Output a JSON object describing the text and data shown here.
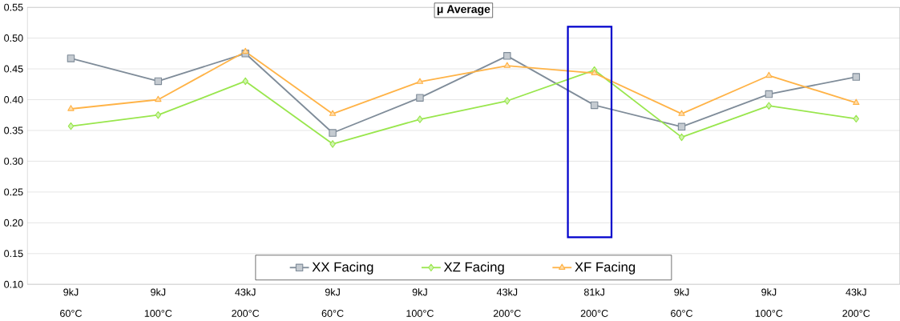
{
  "chart_data": {
    "type": "line",
    "title": "μ Average",
    "categories": [
      "9kJ 60°C",
      "9kJ 100°C",
      "43kJ 200°C",
      "9kJ 60°C",
      "9kJ 100°C",
      "43kJ 200°C",
      "81kJ 200°C",
      "9kJ 60°C",
      "9kJ 100°C",
      "43kJ 200°C"
    ],
    "series": [
      {
        "name": "XX Facing",
        "color": "#7f8c99",
        "marker": "square",
        "values": [
          0.467,
          0.43,
          0.475,
          0.346,
          0.403,
          0.471,
          0.391,
          0.356,
          0.409,
          0.437
        ]
      },
      {
        "name": "XZ Facing",
        "color": "#99e64d",
        "marker": "diamond",
        "values": [
          0.357,
          0.375,
          0.43,
          0.328,
          0.368,
          0.398,
          0.448,
          0.339,
          0.39,
          0.369
        ]
      },
      {
        "name": "XF Facing",
        "color": "#ffb347",
        "marker": "triangle",
        "values": [
          0.385,
          0.4,
          0.478,
          0.377,
          0.429,
          0.455,
          0.443,
          0.377,
          0.439,
          0.395
        ]
      }
    ],
    "ylim": [
      0.1,
      0.55
    ],
    "yticks": [
      {
        "value": 0.1,
        "label": "0.10"
      },
      {
        "value": 0.15,
        "label": "0.15"
      },
      {
        "value": 0.2,
        "label": "0.20"
      },
      {
        "value": 0.25,
        "label": "0.25"
      },
      {
        "value": 0.3,
        "label": "0.30"
      },
      {
        "value": 0.35,
        "label": "0.35"
      },
      {
        "value": 0.4,
        "label": "0.40"
      },
      {
        "value": 0.45,
        "label": "0.45"
      },
      {
        "value": 0.5,
        "label": "0.50"
      },
      {
        "value": 0.55,
        "label": "0.55"
      }
    ],
    "grid": "y",
    "legend": "bottom"
  }
}
